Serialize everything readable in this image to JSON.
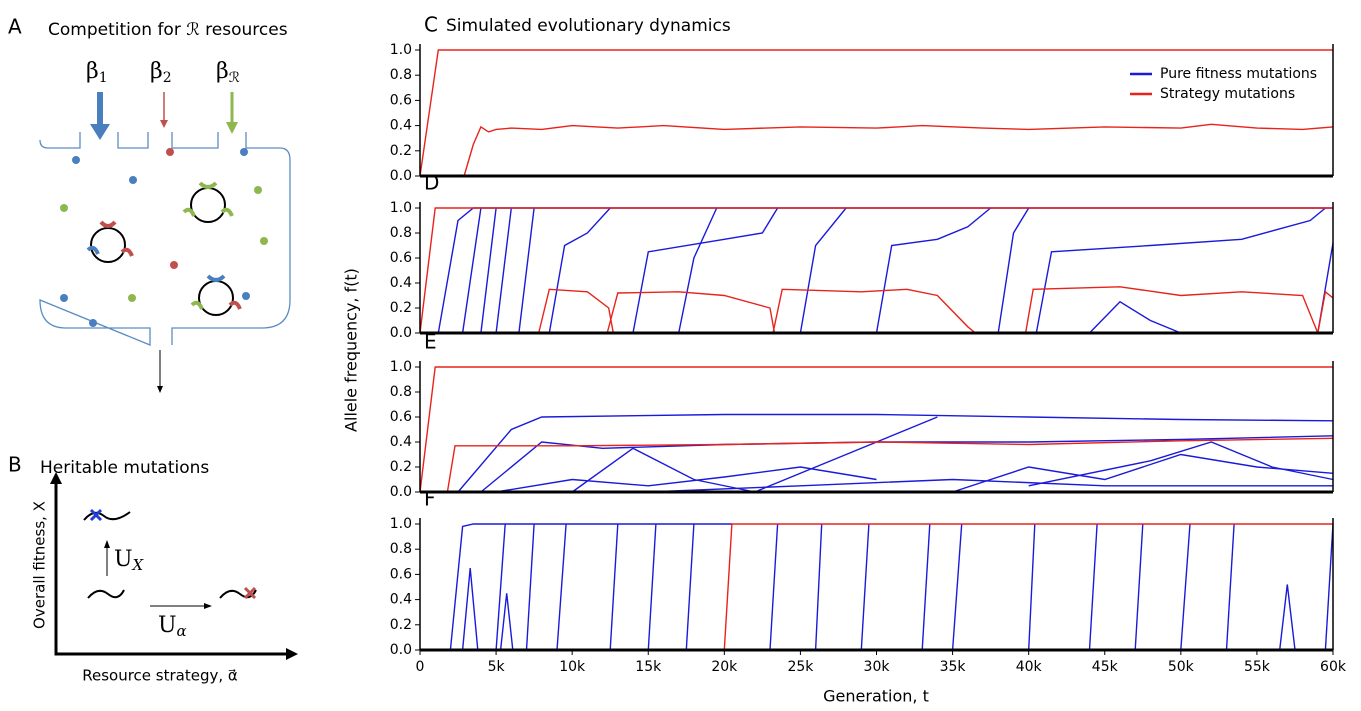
{
  "panel_a": {
    "label": "A",
    "title": "Competition for ℛ resources",
    "inputs": [
      {
        "base": "β",
        "sub": "1"
      },
      {
        "base": "β",
        "sub": "2"
      },
      {
        "base": "β",
        "sub": "ℛ"
      }
    ]
  },
  "panel_b": {
    "label": "B",
    "title": "Heritable mutations",
    "ylabel": "Overall fitness, X",
    "xlabel": "Resource strategy, α⃗",
    "up_label": {
      "base": "U",
      "sub": "X"
    },
    "right_label": {
      "base": "U",
      "sub": "α"
    }
  },
  "shared_axes": {
    "ylabel": "Allele frequency, f(t)",
    "xlabel": "Generation, t"
  },
  "chart_data": [
    {
      "type": "line",
      "label": "C",
      "title": "Simulated evolutionary dynamics",
      "xlim": [
        0,
        60000
      ],
      "ylim": [
        0,
        1
      ],
      "yticks": [
        {
          "value": 0,
          "label": "0.0"
        },
        0.2,
        0.4,
        0.6,
        0.8,
        {
          "value": 1,
          "label": "1.0"
        }
      ],
      "legend": [
        {
          "name": "Pure fitness mutations",
          "color": "#1a1adb"
        },
        {
          "name": "Strategy mutations",
          "color": "#e8231b"
        }
      ],
      "series": [
        {
          "color": "#e8231b",
          "x": [
            0,
            1200,
            60000
          ],
          "values": [
            0,
            1,
            1
          ]
        },
        {
          "color": "#e8231b",
          "x": [
            2900,
            3500,
            4000,
            4500,
            5000,
            6000,
            8000,
            10000,
            13000,
            16000,
            20000,
            25000,
            30000,
            33000,
            37000,
            40000,
            45000,
            50000,
            52000,
            55000,
            58000,
            60000
          ],
          "values": [
            0,
            0.25,
            0.39,
            0.35,
            0.37,
            0.38,
            0.37,
            0.4,
            0.38,
            0.4,
            0.37,
            0.39,
            0.38,
            0.4,
            0.38,
            0.37,
            0.39,
            0.38,
            0.41,
            0.38,
            0.37,
            0.39
          ]
        }
      ]
    },
    {
      "type": "line",
      "label": "D",
      "xlim": [
        0,
        60000
      ],
      "ylim": [
        0,
        1
      ],
      "yticks": [
        {
          "value": 0,
          "label": "0.0"
        },
        0.2,
        0.4,
        0.6,
        0.8,
        {
          "value": 1,
          "label": "1.0"
        }
      ],
      "series": [
        {
          "color": "#1a1adb",
          "x": [
            1200,
            2500,
            3500,
            60000
          ],
          "values": [
            0,
            0.9,
            1,
            1
          ]
        },
        {
          "color": "#1a1adb",
          "x": [
            2800,
            4000
          ],
          "values": [
            0,
            1
          ]
        },
        {
          "color": "#1a1adb",
          "x": [
            4000,
            5000
          ],
          "values": [
            0,
            1
          ]
        },
        {
          "color": "#1a1adb",
          "x": [
            5000,
            6000
          ],
          "values": [
            0,
            1
          ]
        },
        {
          "color": "#1a1adb",
          "x": [
            6500,
            7500
          ],
          "values": [
            0,
            1
          ]
        },
        {
          "color": "#1a1adb",
          "x": [
            8500,
            9500,
            11000,
            12500
          ],
          "values": [
            0,
            0.7,
            0.8,
            1
          ]
        },
        {
          "color": "#1a1adb",
          "x": [
            14000,
            15000,
            20000,
            22500,
            23500
          ],
          "values": [
            0,
            0.65,
            0.75,
            0.8,
            1
          ]
        },
        {
          "color": "#1a1adb",
          "x": [
            17000,
            18000,
            19500
          ],
          "values": [
            0,
            0.6,
            1
          ]
        },
        {
          "color": "#1a1adb",
          "x": [
            25000,
            26000,
            28000
          ],
          "values": [
            0,
            0.7,
            1
          ]
        },
        {
          "color": "#1a1adb",
          "x": [
            30000,
            31000,
            34000,
            36000,
            37500
          ],
          "values": [
            0,
            0.7,
            0.75,
            0.85,
            1
          ]
        },
        {
          "color": "#1a1adb",
          "x": [
            38000,
            39000,
            40000
          ],
          "values": [
            0,
            0.8,
            1
          ]
        },
        {
          "color": "#1a1adb",
          "x": [
            40500,
            41500,
            48000,
            54000,
            58500,
            59500
          ],
          "values": [
            0,
            0.65,
            0.7,
            0.75,
            0.9,
            1
          ]
        },
        {
          "color": "#1a1adb",
          "x": [
            44000,
            46000,
            48000,
            50000
          ],
          "values": [
            0,
            0.25,
            0.1,
            0
          ]
        },
        {
          "color": "#1a1adb",
          "x": [
            59000,
            60000
          ],
          "values": [
            0,
            0.72
          ]
        },
        {
          "color": "#e8231b",
          "x": [
            0,
            1000,
            60000
          ],
          "values": [
            0,
            1,
            1
          ]
        },
        {
          "color": "#e8231b",
          "x": [
            7800,
            8500,
            11000,
            12400,
            12700
          ],
          "values": [
            0,
            0.35,
            0.33,
            0.2,
            0
          ]
        },
        {
          "color": "#e8231b",
          "x": [
            12300,
            13000,
            17000,
            20000,
            23000,
            23300
          ],
          "values": [
            0,
            0.32,
            0.33,
            0.3,
            0.2,
            0
          ]
        },
        {
          "color": "#e8231b",
          "x": [
            23200,
            23800,
            29000,
            32000,
            34000,
            36000,
            36500
          ],
          "values": [
            0,
            0.35,
            0.33,
            0.35,
            0.3,
            0.05,
            0
          ]
        },
        {
          "color": "#e8231b",
          "x": [
            39800,
            40300,
            46000,
            50000,
            54000,
            58000,
            59000
          ],
          "values": [
            0,
            0.35,
            0.37,
            0.3,
            0.33,
            0.3,
            0
          ]
        },
        {
          "color": "#e8231b",
          "x": [
            59000,
            59500,
            60000
          ],
          "values": [
            0,
            0.33,
            0.28
          ]
        }
      ]
    },
    {
      "type": "line",
      "label": "E",
      "xlim": [
        0,
        60000
      ],
      "ylim": [
        0,
        1
      ],
      "yticks": [
        {
          "value": 0,
          "label": "0.0"
        },
        0.2,
        0.4,
        0.6,
        0.8,
        {
          "value": 1,
          "label": "1.0"
        }
      ],
      "series": [
        {
          "color": "#1a1adb",
          "x": [
            2500,
            6000,
            8000,
            20000,
            30000,
            40000,
            50000,
            60000
          ],
          "values": [
            0,
            0.5,
            0.6,
            0.62,
            0.62,
            0.6,
            0.58,
            0.57
          ]
        },
        {
          "color": "#1a1adb",
          "x": [
            4000,
            8000,
            12000,
            20000,
            30000,
            40000,
            50000,
            60000
          ],
          "values": [
            0,
            0.4,
            0.35,
            0.38,
            0.4,
            0.4,
            0.42,
            0.45
          ]
        },
        {
          "color": "#1a1adb",
          "x": [
            5000,
            10000,
            15000,
            20000,
            25000,
            30000
          ],
          "values": [
            0,
            0.1,
            0.05,
            0.12,
            0.2,
            0.1
          ]
        },
        {
          "color": "#1a1adb",
          "x": [
            10000,
            14000,
            18000,
            22000
          ],
          "values": [
            0,
            0.35,
            0.1,
            0
          ]
        },
        {
          "color": "#1a1adb",
          "x": [
            22000,
            28000,
            34000
          ],
          "values": [
            0,
            0.3,
            0.6
          ]
        },
        {
          "color": "#1a1adb",
          "x": [
            35000,
            40000,
            45000,
            50000,
            55000,
            60000
          ],
          "values": [
            0,
            0.2,
            0.1,
            0.3,
            0.2,
            0.15
          ]
        },
        {
          "color": "#1a1adb",
          "x": [
            40000,
            48000,
            52000,
            56000,
            60000
          ],
          "values": [
            0.05,
            0.25,
            0.4,
            0.2,
            0.1
          ]
        },
        {
          "color": "#1a1adb",
          "x": [
            15000,
            25000,
            35000,
            45000,
            60000
          ],
          "values": [
            0,
            0.05,
            0.1,
            0.05,
            0.05
          ]
        },
        {
          "color": "#e8231b",
          "x": [
            0,
            1000,
            60000
          ],
          "values": [
            0,
            1,
            1
          ]
        },
        {
          "color": "#e8231b",
          "x": [
            1800,
            2300,
            10000,
            20000,
            30000,
            40000,
            50000,
            60000
          ],
          "values": [
            0,
            0.37,
            0.37,
            0.38,
            0.4,
            0.38,
            0.41,
            0.43
          ]
        }
      ]
    },
    {
      "type": "line",
      "label": "F",
      "xlim": [
        0,
        60000
      ],
      "ylim": [
        0,
        1
      ],
      "yticks": [
        {
          "value": 0,
          "label": "0.0"
        },
        0.2,
        0.4,
        0.6,
        0.8,
        {
          "value": 1,
          "label": "1.0"
        }
      ],
      "xticks": [
        0,
        {
          "value": 5000,
          "label": "5k"
        },
        {
          "value": 10000,
          "label": "10k"
        },
        {
          "value": 15000,
          "label": "15k"
        },
        {
          "value": 20000,
          "label": "20k"
        },
        {
          "value": 25000,
          "label": "25k"
        },
        {
          "value": 30000,
          "label": "30k"
        },
        {
          "value": 35000,
          "label": "35k"
        },
        {
          "value": 40000,
          "label": "40k"
        },
        {
          "value": 45000,
          "label": "45k"
        },
        {
          "value": 50000,
          "label": "50k"
        },
        {
          "value": 55000,
          "label": "55k"
        },
        {
          "value": 60000,
          "label": "60k"
        }
      ],
      "series": [
        {
          "color": "#1a1adb",
          "x": [
            2000,
            2800,
            3500,
            20500
          ],
          "values": [
            0,
            0.98,
            1,
            1
          ]
        },
        {
          "color": "#1a1adb",
          "x": [
            2800,
            3300,
            3800
          ],
          "values": [
            0,
            0.65,
            0
          ]
        },
        {
          "color": "#1a1adb",
          "x": [
            5300,
            5700,
            6100
          ],
          "values": [
            0,
            0.45,
            0
          ]
        },
        {
          "color": "#1a1adb",
          "x": [
            5000,
            5600
          ],
          "values": [
            0,
            1
          ]
        },
        {
          "color": "#1a1adb",
          "x": [
            7000,
            7500
          ],
          "values": [
            0,
            1
          ]
        },
        {
          "color": "#1a1adb",
          "x": [
            9000,
            9600
          ],
          "values": [
            0,
            1
          ]
        },
        {
          "color": "#1a1adb",
          "x": [
            12500,
            13000
          ],
          "values": [
            0,
            1
          ]
        },
        {
          "color": "#1a1adb",
          "x": [
            15000,
            15500
          ],
          "values": [
            0,
            1
          ]
        },
        {
          "color": "#1a1adb",
          "x": [
            17500,
            18000
          ],
          "values": [
            0,
            1
          ]
        },
        {
          "color": "#1a1adb",
          "x": [
            23000,
            23500
          ],
          "values": [
            0,
            1
          ]
        },
        {
          "color": "#1a1adb",
          "x": [
            26000,
            26400
          ],
          "values": [
            0,
            1
          ]
        },
        {
          "color": "#1a1adb",
          "x": [
            29000,
            29500
          ],
          "values": [
            0,
            1
          ]
        },
        {
          "color": "#1a1adb",
          "x": [
            33000,
            33500
          ],
          "values": [
            0,
            1
          ]
        },
        {
          "color": "#1a1adb",
          "x": [
            35000,
            35600
          ],
          "values": [
            0,
            1
          ]
        },
        {
          "color": "#1a1adb",
          "x": [
            40000,
            40400
          ],
          "values": [
            0,
            1
          ]
        },
        {
          "color": "#1a1adb",
          "x": [
            44000,
            44500
          ],
          "values": [
            0,
            1
          ]
        },
        {
          "color": "#1a1adb",
          "x": [
            47000,
            47500
          ],
          "values": [
            0,
            1
          ]
        },
        {
          "color": "#1a1adb",
          "x": [
            50000,
            50600
          ],
          "values": [
            0,
            1
          ]
        },
        {
          "color": "#1a1adb",
          "x": [
            53000,
            53500
          ],
          "values": [
            0,
            1
          ]
        },
        {
          "color": "#1a1adb",
          "x": [
            56500,
            57000,
            57500
          ],
          "values": [
            0,
            0.52,
            0
          ]
        },
        {
          "color": "#1a1adb",
          "x": [
            59500,
            60000
          ],
          "values": [
            0,
            1
          ]
        },
        {
          "color": "#e8231b",
          "x": [
            20000,
            20500,
            60000
          ],
          "values": [
            0,
            1,
            1
          ]
        }
      ]
    }
  ]
}
